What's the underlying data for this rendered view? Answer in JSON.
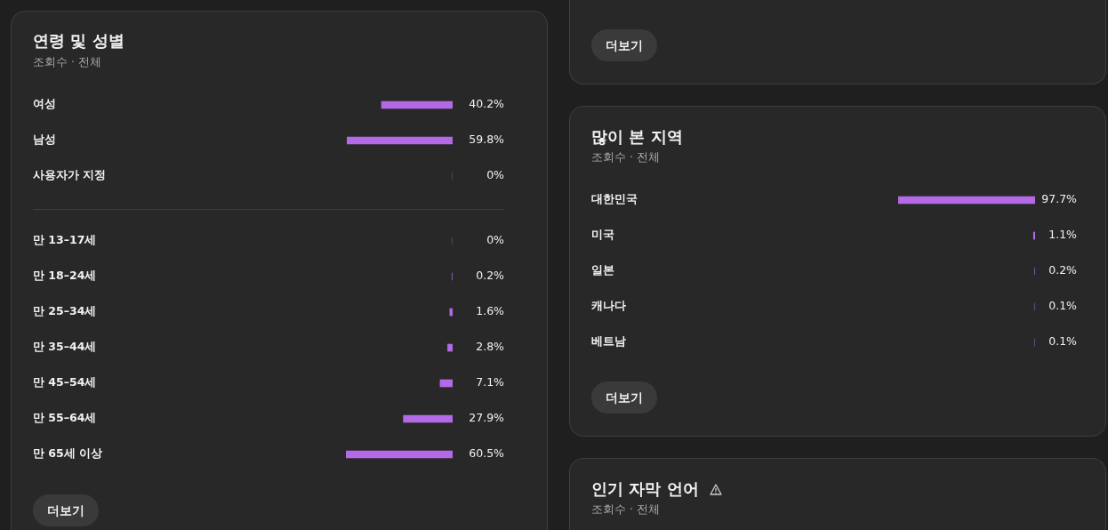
{
  "chart_data": [
    {
      "type": "bar",
      "title": "연령 및 성별",
      "subtitle": "조회수 · 전체",
      "orientation": "horizontal",
      "categories": [
        "여성",
        "남성",
        "사용자가 지정"
      ],
      "values": [
        40.2,
        59.8,
        0
      ],
      "value_labels": [
        "40.2%",
        "59.8%",
        "0%"
      ],
      "color": "#b46ae6"
    },
    {
      "type": "bar",
      "orientation": "horizontal",
      "categories": [
        "만 13–17세",
        "만 18–24세",
        "만 25–34세",
        "만 35–44세",
        "만 45–54세",
        "만 55–64세",
        "만 65세 이상"
      ],
      "values": [
        0,
        0.2,
        1.6,
        2.8,
        7.1,
        27.9,
        60.5
      ],
      "value_labels": [
        "0%",
        "0.2%",
        "1.6%",
        "2.8%",
        "7.1%",
        "27.9%",
        "60.5%"
      ],
      "color": "#b46ae6",
      "annotations": [
        "더보기"
      ]
    },
    {
      "type": "other",
      "annotations": [
        "더보기"
      ]
    },
    {
      "type": "bar",
      "title": "많이 본 지역",
      "subtitle": "조회수 · 전체",
      "orientation": "horizontal",
      "categories": [
        "대한민국",
        "미국",
        "일본",
        "캐나다",
        "베트남"
      ],
      "values": [
        97.7,
        1.1,
        0.2,
        0.1,
        0.1
      ],
      "value_labels": [
        "97.7%",
        "1.1%",
        "0.2%",
        "0.1%",
        "0.1%"
      ],
      "color": "#b46ae6",
      "annotations": [
        "더보기"
      ]
    },
    {
      "type": "other",
      "title": "인기 자막 언어",
      "subtitle": "조회수 · 전체"
    }
  ]
}
